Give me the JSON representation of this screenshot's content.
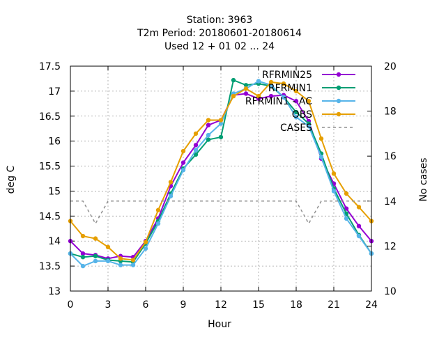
{
  "chart_data": {
    "type": "line",
    "title_lines": [
      "Station:     3963",
      "T2m   Period: 20180601-20180614",
      "Used  12 + 01 02 ... 24"
    ],
    "xlabel": "Hour",
    "ylabel": "deg C",
    "y2label": "No cases",
    "xlim": [
      0,
      24
    ],
    "ylim": [
      13,
      17.5
    ],
    "y2lim": [
      10,
      20
    ],
    "xticks": [
      "0",
      "3",
      "6",
      "9",
      "12",
      "15",
      "18",
      "21",
      "24"
    ],
    "yticks": [
      "13",
      "13.5",
      "14",
      "14.5",
      "15",
      "15.5",
      "16",
      "16.5",
      "17",
      "17.5"
    ],
    "y2ticks": [
      "10",
      "12",
      "14",
      "16",
      "18",
      "20"
    ],
    "grid": true,
    "legend_position": "top-right",
    "x": [
      0,
      1,
      2,
      3,
      4,
      5,
      6,
      7,
      8,
      9,
      10,
      11,
      12,
      13,
      14,
      15,
      16,
      17,
      18,
      19,
      20,
      21,
      22,
      23,
      24
    ],
    "series": [
      {
        "name": "RFRMIN25",
        "color": "#9400d3",
        "marker": "circle",
        "values": [
          14.0,
          13.75,
          13.72,
          13.65,
          13.7,
          13.68,
          14.0,
          14.45,
          15.1,
          15.57,
          15.92,
          16.32,
          16.42,
          16.92,
          16.95,
          16.85,
          16.9,
          16.92,
          16.8,
          16.4,
          15.65,
          15.15,
          14.65,
          14.3,
          14.0
        ]
      },
      {
        "name": "RFRMIN1",
        "color": "#009e73",
        "marker": "circle",
        "values": [
          13.75,
          13.68,
          13.7,
          13.62,
          13.6,
          13.58,
          13.95,
          14.4,
          14.95,
          15.45,
          15.73,
          16.03,
          16.08,
          17.22,
          17.12,
          17.15,
          17.1,
          16.88,
          16.58,
          16.35,
          15.75,
          15.05,
          14.55,
          14.12,
          13.75
        ]
      },
      {
        "name": "RFRMIN1 - AC",
        "color": "#56b4e9",
        "marker": "circle",
        "values": [
          13.75,
          13.5,
          13.6,
          13.6,
          13.52,
          13.52,
          13.85,
          14.35,
          14.9,
          15.42,
          15.82,
          16.12,
          16.35,
          16.95,
          17.05,
          17.2,
          17.12,
          16.88,
          16.48,
          16.3,
          15.68,
          15.0,
          14.45,
          14.1,
          13.75
        ]
      },
      {
        "name": "OBS",
        "color": "#e69f00",
        "marker": "circle",
        "values": [
          14.4,
          14.1,
          14.05,
          13.88,
          13.65,
          13.62,
          13.98,
          14.62,
          15.18,
          15.8,
          16.15,
          16.42,
          16.42,
          16.9,
          17.05,
          16.9,
          17.18,
          17.15,
          17.0,
          16.8,
          16.05,
          15.35,
          14.95,
          14.68,
          14.4
        ]
      },
      {
        "name": "CASES",
        "color": "#909090",
        "dashed": true,
        "axis": "y2",
        "values": [
          14,
          14,
          13,
          14,
          14,
          14,
          14,
          14,
          14,
          14,
          14,
          14,
          14,
          14,
          14,
          14,
          14,
          14,
          14,
          13,
          14,
          14,
          14,
          14,
          14
        ]
      }
    ]
  }
}
